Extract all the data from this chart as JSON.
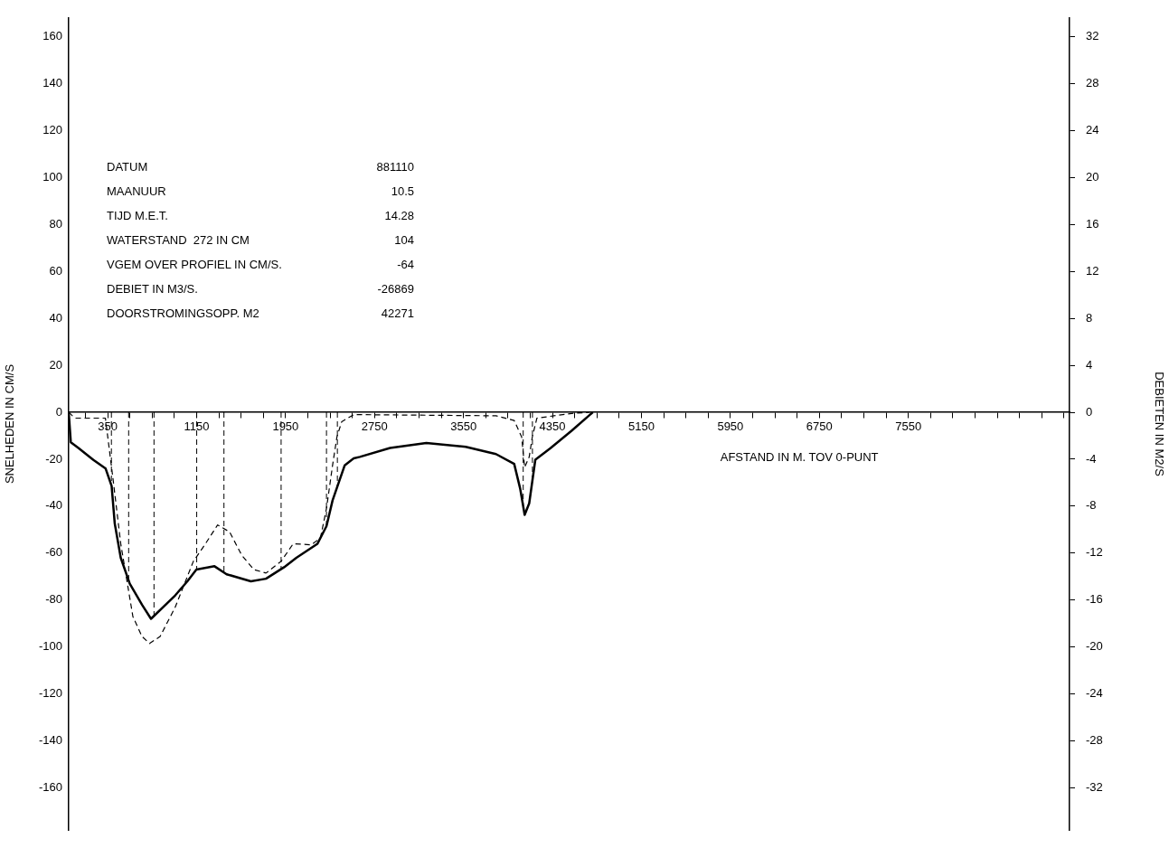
{
  "chart_data": {
    "type": "line",
    "xlabel": "AFSTAND IN M. TOV 0-PUNT",
    "ylabel": "SNELHEDEN IN CM/S",
    "y2label": "DEBIETEN IN M2/S",
    "xlim": [
      0,
      9000
    ],
    "xticks": [
      {
        "value": 150,
        "label": null
      },
      350,
      {
        "value": 550,
        "label": null
      },
      {
        "value": 750,
        "label": null
      },
      {
        "value": 950,
        "label": null
      },
      1150,
      {
        "value": 1350,
        "label": null
      },
      {
        "value": 1550,
        "label": null
      },
      {
        "value": 1750,
        "label": null
      },
      1950,
      {
        "value": 2150,
        "label": null
      },
      {
        "value": 2350,
        "label": null
      },
      {
        "value": 2550,
        "label": null
      },
      2750,
      {
        "value": 2950,
        "label": null
      },
      {
        "value": 3150,
        "label": null
      },
      {
        "value": 3350,
        "label": null
      },
      3550,
      {
        "value": 3750,
        "label": null
      },
      {
        "value": 3950,
        "label": null
      },
      {
        "value": 4150,
        "label": null
      },
      4350,
      {
        "value": 4550,
        "label": null
      },
      {
        "value": 4750,
        "label": null
      },
      {
        "value": 4950,
        "label": null
      },
      5150,
      {
        "value": 5350,
        "label": null
      },
      {
        "value": 5550,
        "label": null
      },
      {
        "value": 5750,
        "label": null
      },
      5950,
      {
        "value": 6150,
        "label": null
      },
      {
        "value": 6350,
        "label": null
      },
      {
        "value": 6550,
        "label": null
      },
      6750,
      {
        "value": 6950,
        "label": null
      },
      {
        "value": 7150,
        "label": null
      },
      {
        "value": 7350,
        "label": null
      },
      7550,
      {
        "value": 7750,
        "label": null
      },
      {
        "value": 7950,
        "label": null
      },
      {
        "value": 8150,
        "label": null
      },
      {
        "value": 8350,
        "label": null
      },
      {
        "value": 8550,
        "label": null
      },
      {
        "value": 8750,
        "label": null
      },
      {
        "value": 8950,
        "label": null
      }
    ],
    "ylim": [
      -178,
      168
    ],
    "yticks": [
      -160,
      -140,
      -120,
      -100,
      -80,
      -60,
      -40,
      -20,
      0,
      20,
      40,
      60,
      80,
      100,
      120,
      140,
      160
    ],
    "y2lim": [
      -35.6,
      33.6
    ],
    "y2ticks": [
      -32,
      -28,
      -24,
      -20,
      -16,
      -12,
      -8,
      -4,
      0,
      4,
      8,
      12,
      16,
      20,
      24,
      28,
      32
    ],
    "grid": false,
    "legend": false,
    "marker": "none",
    "series": [
      {
        "color": "#000000",
        "line_style": "solid",
        "x": [
          0,
          19,
          87,
          222,
          332,
          386,
          414,
          468,
          549,
          659,
          740,
          958,
          1067,
          1148,
          1311,
          1420,
          1638,
          1774,
          1937,
          2047,
          2237,
          2318,
          2373,
          2482,
          2563,
          2618,
          2890,
          3216,
          3570,
          3842,
          4006,
          4060,
          4100,
          4141,
          4196,
          4332,
          4522,
          4686,
          4713
        ],
        "values": [
          0,
          -12.8,
          -15.2,
          -20.3,
          -24,
          -31.4,
          -47.4,
          -62,
          -73,
          -82,
          -88,
          -78,
          -72,
          -67,
          -65.6,
          -69,
          -72,
          -70.9,
          -66,
          -62,
          -56,
          -48.5,
          -37.5,
          -22.6,
          -19.6,
          -19,
          -15.2,
          -13.1,
          -14.7,
          -17.8,
          -22,
          -32.6,
          -43.7,
          -38.8,
          -20.2,
          -15.3,
          -7.9,
          -1.1,
          0
        ]
      },
      {
        "color": "#000000",
        "line_style": "dashed",
        "axis": "y2",
        "x": [
          0,
          33,
          60,
          330,
          400,
          468,
          577,
          659,
          727,
          822,
          958,
          1121,
          1230,
          1339,
          1447,
          1557,
          1665,
          1774,
          1910,
          2019,
          2182,
          2264,
          2318,
          2373,
          2412,
          2455,
          2563,
          3842,
          4006,
          4073,
          4100,
          4141,
          4169,
          4210,
          4522,
          4686
        ],
        "values": [
          0,
          -0.3,
          -0.5,
          -0.5,
          -5.8,
          -11.2,
          -17.4,
          -19.1,
          -19.7,
          -19.1,
          -16.6,
          -12.7,
          -11.2,
          -9.6,
          -10.2,
          -12.2,
          -13.4,
          -13.7,
          -12.7,
          -11.2,
          -11.3,
          -10.7,
          -8.2,
          -4.5,
          -2.1,
          -0.8,
          -0.2,
          -0.3,
          -0.7,
          -2.1,
          -4.7,
          -3.8,
          -2.1,
          -0.5,
          -0.1,
          0
        ]
      }
    ],
    "ref_lines": [
      {
        "axis": "x",
        "value": 384,
        "line_style": "dashed"
      },
      {
        "axis": "x",
        "value": 539,
        "line_style": "dashed"
      },
      {
        "axis": "x",
        "value": 767,
        "line_style": "dashed"
      },
      {
        "axis": "x",
        "value": 1151,
        "line_style": "dashed"
      },
      {
        "axis": "x",
        "value": 1396,
        "line_style": "dashed"
      },
      {
        "axis": "x",
        "value": 1910,
        "line_style": "dashed"
      },
      {
        "axis": "x",
        "value": 2318,
        "line_style": "dashed"
      },
      {
        "axis": "x",
        "value": 2416,
        "line_style": "dashed"
      },
      {
        "axis": "x",
        "value": 4087,
        "line_style": "dashed"
      },
      {
        "axis": "x",
        "value": 4170,
        "line_style": "dashed"
      }
    ],
    "annotations": [
      "DATUM",
      "881110",
      "MAANUUR",
      "10.5",
      "TIJD M.E.T.",
      "14.28",
      "WATERSTAND  272 IN CM",
      "104",
      "VGEM OVER PROFIEL IN CM/S.",
      "-64",
      "DEBIET IN M3/S.",
      "-26869",
      "DOORSTROMINGSOPP. M2",
      "42271"
    ]
  }
}
